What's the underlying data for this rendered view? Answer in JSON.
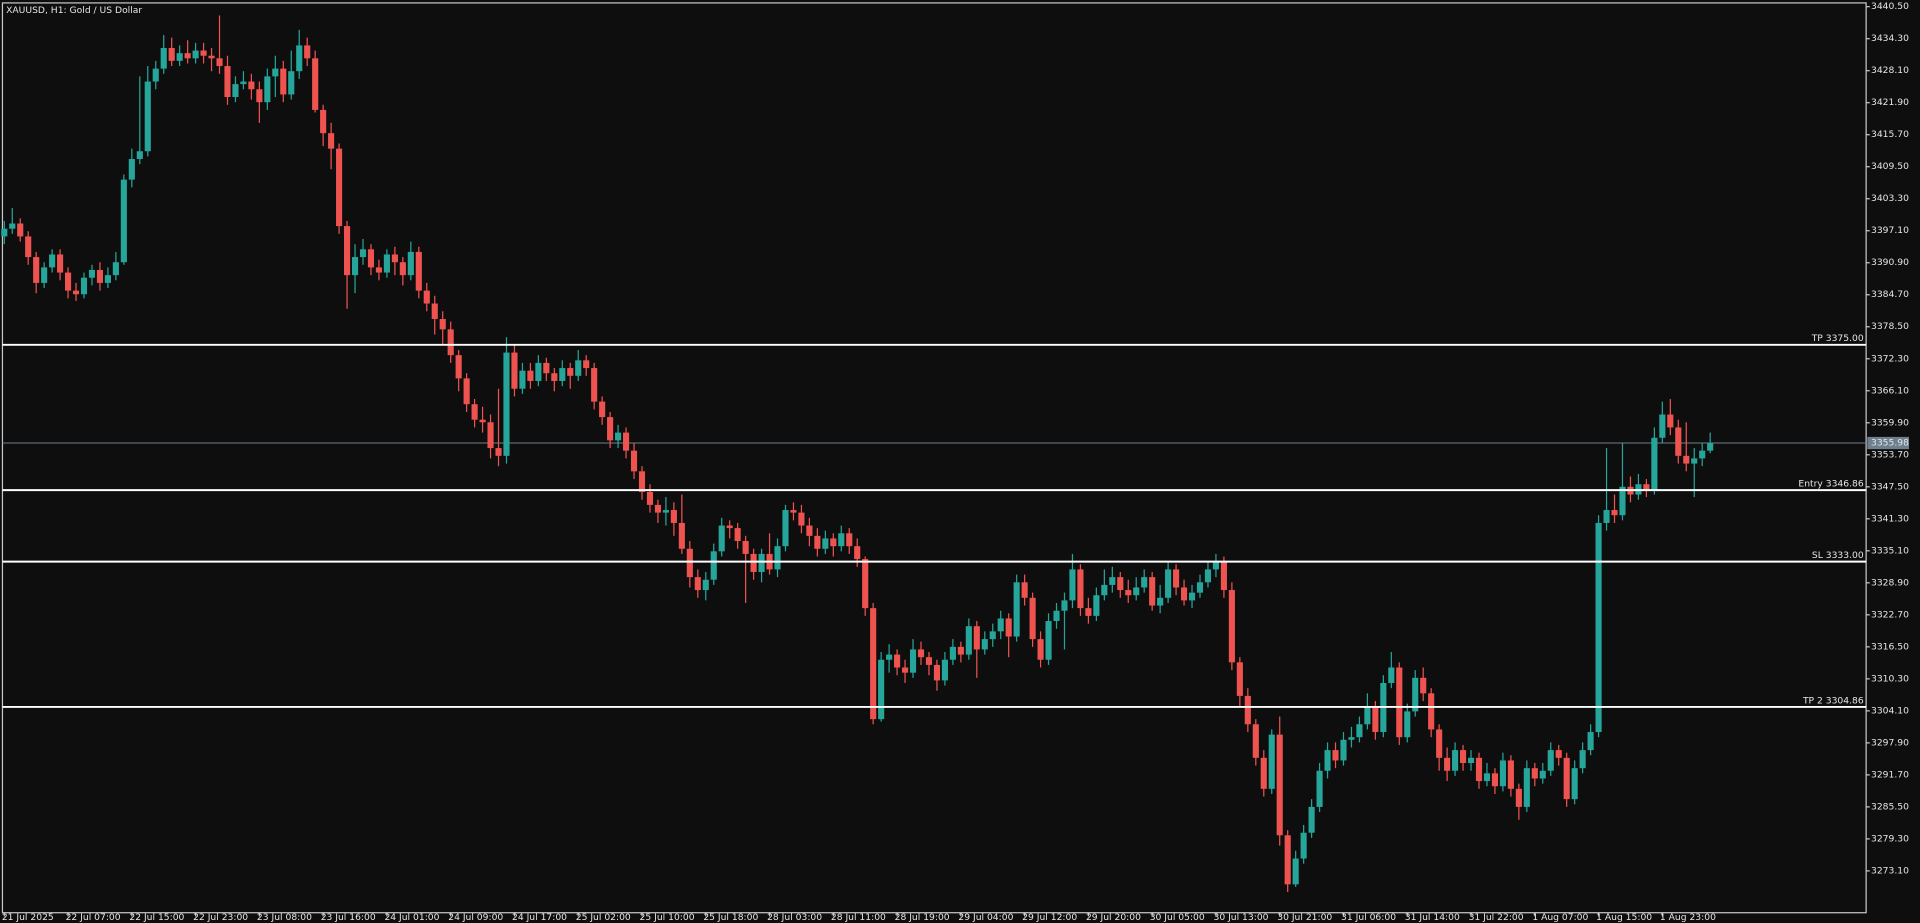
{
  "chart_data": {
    "type": "candlestick",
    "title": "XAUUSD, H1:  Gold / US Dollar",
    "categories": [
      "21 Jul 2025",
      null,
      null,
      null,
      null,
      null,
      null,
      null,
      "22 Jul 07:00",
      null,
      null,
      null,
      null,
      null,
      null,
      null,
      "22 Jul 15:00",
      null,
      null,
      null,
      null,
      null,
      null,
      null,
      "22 Jul 23:00",
      null,
      null,
      null,
      null,
      null,
      null,
      null,
      "23 Jul 08:00",
      null,
      null,
      null,
      null,
      null,
      null,
      null,
      "23 Jul 16:00",
      null,
      null,
      null,
      null,
      null,
      null,
      null,
      "24 Jul 01:00",
      null,
      null,
      null,
      null,
      null,
      null,
      null,
      "24 Jul 09:00",
      null,
      null,
      null,
      null,
      null,
      null,
      null,
      "24 Jul 17:00",
      null,
      null,
      null,
      null,
      null,
      null,
      null,
      "25 Jul 02:00",
      null,
      null,
      null,
      null,
      null,
      null,
      null,
      "25 Jul 10:00",
      null,
      null,
      null,
      null,
      null,
      null,
      null,
      "25 Jul 18:00",
      null,
      null,
      null,
      null,
      null,
      null,
      null,
      "28 Jul 03:00",
      null,
      null,
      null,
      null,
      null,
      null,
      null,
      "28 Jul 11:00",
      null,
      null,
      null,
      null,
      null,
      null,
      null,
      "28 Jul 19:00",
      null,
      null,
      null,
      null,
      null,
      null,
      null,
      "29 Jul 04:00",
      null,
      null,
      null,
      null,
      null,
      null,
      null,
      "29 Jul 12:00",
      null,
      null,
      null,
      null,
      null,
      null,
      null,
      "29 Jul 20:00",
      null,
      null,
      null,
      null,
      null,
      null,
      null,
      "30 Jul 05:00",
      null,
      null,
      null,
      null,
      null,
      null,
      null,
      "30 Jul 13:00",
      null,
      null,
      null,
      null,
      null,
      null,
      null,
      "30 Jul 21:00",
      null,
      null,
      null,
      null,
      null,
      null,
      null,
      "31 Jul 06:00",
      null,
      null,
      null,
      null,
      null,
      null,
      null,
      "31 Jul 14:00",
      null,
      null,
      null,
      null,
      null,
      null,
      null,
      "31 Jul 22:00",
      null,
      null,
      null,
      null,
      null,
      null,
      null,
      "1 Aug 07:00",
      null,
      null,
      null,
      null,
      null,
      null,
      null,
      "1 Aug 15:00",
      null,
      null,
      null,
      null,
      null,
      null,
      null,
      "1 Aug 23:00",
      null,
      null,
      null,
      null,
      null,
      null
    ],
    "open": [
      3396.0,
      3397.5,
      3398.5,
      3396.0,
      3392.0,
      3387.0,
      3390.0,
      3392.5,
      3389.0,
      3385.5,
      3384.8,
      3388.0,
      3389.5,
      3387.0,
      3388.5,
      3391.0,
      3407.0,
      3411.0,
      3412.5,
      3426.0,
      3428.5,
      3432.5,
      3430.0,
      3431.5,
      3430.5,
      3432.0,
      3431.0,
      3430.5,
      3429.0,
      3423.0,
      3425.5,
      3426.0,
      3424.5,
      3422.0,
      3427.0,
      3428.5,
      3423.5,
      3428.0,
      3433.0,
      3430.5,
      3420.5,
      3416.0,
      3413.0,
      3398.0,
      3388.5,
      3392.0,
      3393.5,
      3390.0,
      3389.0,
      3392.5,
      3391.0,
      3388.5,
      3393.0,
      3385.5,
      3383.0,
      3380.0,
      3378.0,
      3373.0,
      3368.5,
      3363.5,
      3360.5,
      3360.0,
      3355.0,
      3353.5,
      3373.5,
      3366.5,
      3370.0,
      3368.0,
      3371.5,
      3369.5,
      3368.0,
      3370.5,
      3369.0,
      3372.0,
      3370.5,
      3364.0,
      3361.0,
      3356.5,
      3358.0,
      3354.5,
      3350.5,
      3346.5,
      3344.0,
      3342.5,
      3343.0,
      3340.5,
      3335.5,
      3330.0,
      3327.5,
      3329.5,
      3335.0,
      3340.0,
      3339.5,
      3337.0,
      3334.5,
      3331.0,
      3334.5,
      3331.5,
      3336.0,
      3343.0,
      3342.5,
      3340.0,
      3338.0,
      3335.5,
      3337.5,
      3336.0,
      3338.5,
      3336.0,
      3333.5,
      3324.0,
      3302.5,
      3314.0,
      3315.0,
      3312.5,
      3311.5,
      3316.0,
      3314.5,
      3313.0,
      3310.0,
      3314.0,
      3316.5,
      3315.0,
      3320.5,
      3316.0,
      3318.0,
      3319.5,
      3322.0,
      3318.5,
      3329.0,
      3326.0,
      3318.0,
      3314.0,
      3321.5,
      3323.5,
      3325.5,
      3331.5,
      3324.0,
      3322.5,
      3326.5,
      3328.5,
      3330.0,
      3327.5,
      3326.5,
      3328.0,
      3330.0,
      3324.5,
      3326.0,
      3331.5,
      3328.0,
      3325.5,
      3327.0,
      3329.0,
      3331.5,
      3333.0,
      3327.5,
      3313.5,
      3307.0,
      3301.5,
      3295.0,
      3289.0,
      3299.5,
      3280.0,
      3270.5,
      3275.5,
      3280.5,
      3285.5,
      3292.5,
      3296.5,
      3294.5,
      3298.5,
      3299.0,
      3301.5,
      3305.0,
      3300.0,
      3309.5,
      3312.5,
      3299.0,
      3304.0,
      3310.5,
      3307.5,
      3300.5,
      3295.0,
      3292.5,
      3296.5,
      3294.0,
      3295.0,
      3290.5,
      3292.0,
      3289.5,
      3294.5,
      3289.0,
      3285.5,
      3293.0,
      3291.0,
      3292.5,
      3296.5,
      3295.0,
      3287.0,
      3293.0,
      3296.5,
      3300.0,
      3340.5,
      3343.0,
      3342.0,
      3347.5,
      3346.0,
      3348.0,
      3347.0,
      3357.0,
      3361.5,
      3359.0,
      3353.5,
      3352.0,
      3353.0,
      3354.5
    ],
    "high": [
      3399.0,
      3401.5,
      3399.5,
      3397.0,
      3393.0,
      3391.0,
      3393.5,
      3393.5,
      3390.0,
      3387.0,
      3389.0,
      3390.5,
      3391.0,
      3390.0,
      3393.0,
      3408.0,
      3413.0,
      3427.0,
      3429.0,
      3430.0,
      3435.0,
      3434.5,
      3433.0,
      3434.0,
      3433.5,
      3433.5,
      3432.5,
      3438.8,
      3431.0,
      3427.0,
      3428.0,
      3427.5,
      3426.0,
      3428.5,
      3431.0,
      3430.0,
      3432.0,
      3436.0,
      3434.5,
      3432.0,
      3421.5,
      3418.0,
      3414.0,
      3399.0,
      3394.5,
      3395.5,
      3394.5,
      3391.5,
      3393.5,
      3394.0,
      3392.0,
      3395.0,
      3394.0,
      3387.0,
      3384.5,
      3381.5,
      3379.5,
      3374.0,
      3369.5,
      3364.5,
      3363.0,
      3361.5,
      3366.5,
      3376.5,
      3375.0,
      3371.5,
      3371.5,
      3373.0,
      3372.5,
      3370.5,
      3372.0,
      3371.5,
      3374.0,
      3373.0,
      3371.5,
      3365.0,
      3362.0,
      3359.5,
      3359.0,
      3356.0,
      3351.5,
      3348.0,
      3345.0,
      3345.5,
      3344.5,
      3346.0,
      3337.0,
      3331.5,
      3331.0,
      3336.5,
      3341.5,
      3341.0,
      3340.5,
      3338.0,
      3335.5,
      3335.5,
      3338.5,
      3337.5,
      3344.0,
      3344.5,
      3344.0,
      3341.5,
      3339.5,
      3339.0,
      3338.5,
      3340.0,
      3339.5,
      3337.5,
      3334.0,
      3325.0,
      3315.5,
      3317.0,
      3316.0,
      3314.0,
      3318.0,
      3317.5,
      3315.5,
      3314.0,
      3315.5,
      3318.0,
      3317.5,
      3322.0,
      3321.5,
      3319.5,
      3321.0,
      3323.5,
      3323.0,
      3330.5,
      3330.5,
      3327.0,
      3319.5,
      3323.0,
      3325.0,
      3327.0,
      3334.5,
      3332.5,
      3326.0,
      3328.0,
      3331.5,
      3332.0,
      3331.0,
      3329.5,
      3330.0,
      3331.5,
      3331.0,
      3328.5,
      3333.0,
      3332.5,
      3329.5,
      3328.5,
      3330.5,
      3333.0,
      3334.5,
      3334.0,
      3329.0,
      3314.5,
      3308.5,
      3302.5,
      3296.5,
      3300.5,
      3303.0,
      3281.0,
      3277.0,
      3282.0,
      3287.0,
      3294.0,
      3298.0,
      3298.0,
      3300.0,
      3301.0,
      3303.0,
      3307.5,
      3306.0,
      3311.0,
      3315.5,
      3313.5,
      3305.5,
      3312.0,
      3312.5,
      3308.5,
      3301.5,
      3297.0,
      3298.0,
      3297.5,
      3296.5,
      3296.0,
      3294.0,
      3293.0,
      3296.0,
      3295.5,
      3290.0,
      3294.5,
      3294.0,
      3294.0,
      3298.0,
      3297.5,
      3296.0,
      3294.5,
      3298.0,
      3301.5,
      3342.0,
      3355.0,
      3346.0,
      3356.0,
      3349.5,
      3350.0,
      3349.0,
      3359.0,
      3364.0,
      3364.5,
      3360.5,
      3360.0,
      3355.0,
      3356.0,
      3358.0
    ],
    "low": [
      3394.5,
      3396.5,
      3395.0,
      3390.5,
      3385.0,
      3386.0,
      3389.0,
      3387.5,
      3384.0,
      3383.5,
      3384.0,
      3386.5,
      3385.5,
      3386.0,
      3387.5,
      3390.5,
      3405.5,
      3410.0,
      3411.5,
      3424.5,
      3427.5,
      3429.0,
      3429.0,
      3429.5,
      3429.5,
      3429.5,
      3428.0,
      3427.5,
      3421.5,
      3422.0,
      3424.5,
      3422.5,
      3418.0,
      3420.5,
      3423.0,
      3422.0,
      3422.5,
      3426.5,
      3429.0,
      3420.0,
      3413.5,
      3409.0,
      3396.5,
      3382.0,
      3385.0,
      3390.5,
      3388.5,
      3387.5,
      3388.0,
      3388.5,
      3386.5,
      3387.5,
      3384.0,
      3381.5,
      3377.0,
      3375.0,
      3371.5,
      3366.0,
      3362.0,
      3359.0,
      3358.0,
      3353.0,
      3351.5,
      3352.0,
      3365.0,
      3365.5,
      3366.5,
      3367.0,
      3368.0,
      3366.0,
      3367.0,
      3366.5,
      3368.0,
      3369.0,
      3362.5,
      3359.5,
      3355.0,
      3355.0,
      3353.0,
      3349.0,
      3345.0,
      3342.5,
      3340.5,
      3340.0,
      3338.0,
      3334.5,
      3328.0,
      3326.0,
      3325.5,
      3328.5,
      3334.0,
      3337.5,
      3335.5,
      3325.0,
      3329.5,
      3329.0,
      3330.5,
      3330.0,
      3335.0,
      3341.0,
      3338.5,
      3336.0,
      3334.0,
      3334.5,
      3334.0,
      3335.0,
      3334.5,
      3332.0,
      3322.5,
      3301.5,
      3302.0,
      3311.5,
      3311.0,
      3309.5,
      3310.5,
      3313.0,
      3311.0,
      3308.0,
      3309.0,
      3313.0,
      3313.5,
      3314.0,
      3310.5,
      3315.0,
      3316.5,
      3318.0,
      3314.5,
      3317.5,
      3324.5,
      3316.5,
      3312.5,
      3313.0,
      3320.0,
      3316.0,
      3324.0,
      3322.5,
      3321.0,
      3321.5,
      3325.5,
      3327.0,
      3326.0,
      3325.0,
      3325.5,
      3327.0,
      3323.5,
      3323.0,
      3325.0,
      3326.5,
      3324.5,
      3324.0,
      3326.0,
      3328.0,
      3330.0,
      3326.0,
      3312.0,
      3305.0,
      3300.0,
      3293.5,
      3287.5,
      3288.0,
      3278.0,
      3269.0,
      3270.0,
      3274.5,
      3279.5,
      3284.5,
      3291.0,
      3293.0,
      3293.5,
      3297.0,
      3298.0,
      3300.5,
      3298.5,
      3299.0,
      3308.5,
      3297.5,
      3298.0,
      3303.0,
      3306.0,
      3299.0,
      3292.5,
      3290.5,
      3291.5,
      3292.5,
      3292.5,
      3289.0,
      3289.5,
      3288.0,
      3288.5,
      3287.5,
      3283.0,
      3284.5,
      3289.5,
      3290.0,
      3291.5,
      3293.5,
      3285.5,
      3286.0,
      3292.0,
      3295.5,
      3299.0,
      3339.0,
      3340.5,
      3341.0,
      3344.5,
      3345.0,
      3345.5,
      3346.0,
      3356.0,
      3357.5,
      3352.0,
      3350.5,
      3345.5,
      3351.5,
      3354.0
    ],
    "close": [
      3397.5,
      3398.5,
      3396.0,
      3392.0,
      3387.0,
      3390.0,
      3392.5,
      3389.0,
      3385.5,
      3384.8,
      3388.0,
      3389.5,
      3387.0,
      3388.5,
      3391.0,
      3407.0,
      3411.0,
      3412.5,
      3426.0,
      3428.5,
      3432.5,
      3430.0,
      3431.5,
      3430.5,
      3432.0,
      3431.0,
      3430.5,
      3429.0,
      3423.0,
      3425.5,
      3426.0,
      3424.5,
      3422.0,
      3427.0,
      3428.5,
      3423.5,
      3428.0,
      3433.0,
      3430.5,
      3420.5,
      3416.0,
      3413.0,
      3398.0,
      3388.5,
      3392.0,
      3393.5,
      3390.0,
      3389.0,
      3392.5,
      3391.0,
      3388.5,
      3393.0,
      3385.5,
      3383.0,
      3380.0,
      3378.0,
      3373.0,
      3368.5,
      3363.5,
      3360.5,
      3360.0,
      3355.0,
      3353.5,
      3373.5,
      3366.5,
      3370.0,
      3368.0,
      3371.5,
      3369.5,
      3368.0,
      3370.5,
      3369.0,
      3372.0,
      3370.5,
      3364.0,
      3361.0,
      3356.5,
      3358.0,
      3354.5,
      3350.5,
      3346.5,
      3344.0,
      3342.5,
      3343.0,
      3340.5,
      3335.5,
      3330.0,
      3327.5,
      3329.5,
      3335.0,
      3340.0,
      3339.5,
      3337.0,
      3334.5,
      3331.0,
      3334.5,
      3331.5,
      3336.0,
      3343.0,
      3342.5,
      3340.0,
      3338.0,
      3335.5,
      3337.5,
      3336.0,
      3338.5,
      3336.0,
      3333.5,
      3324.0,
      3302.5,
      3314.0,
      3315.0,
      3312.5,
      3311.5,
      3316.0,
      3314.5,
      3313.0,
      3310.0,
      3314.0,
      3316.5,
      3315.0,
      3320.5,
      3316.0,
      3318.0,
      3319.5,
      3322.0,
      3318.5,
      3329.0,
      3326.0,
      3318.0,
      3314.0,
      3321.5,
      3323.5,
      3325.5,
      3331.5,
      3324.0,
      3322.5,
      3326.5,
      3328.5,
      3330.0,
      3327.5,
      3326.5,
      3328.0,
      3330.0,
      3324.5,
      3326.0,
      3331.5,
      3328.0,
      3325.5,
      3327.0,
      3329.0,
      3331.5,
      3333.0,
      3327.5,
      3313.5,
      3307.0,
      3301.5,
      3295.0,
      3289.0,
      3299.5,
      3280.0,
      3270.5,
      3275.5,
      3280.5,
      3285.5,
      3292.5,
      3296.5,
      3294.5,
      3298.5,
      3299.0,
      3301.5,
      3305.0,
      3300.0,
      3309.5,
      3312.5,
      3299.0,
      3304.0,
      3310.5,
      3307.5,
      3300.5,
      3295.0,
      3292.5,
      3296.5,
      3294.0,
      3295.0,
      3290.5,
      3292.0,
      3289.5,
      3294.5,
      3289.0,
      3285.5,
      3293.0,
      3291.0,
      3292.5,
      3296.5,
      3295.0,
      3287.0,
      3293.0,
      3296.5,
      3300.0,
      3340.5,
      3343.0,
      3342.0,
      3347.5,
      3346.0,
      3348.0,
      3347.0,
      3357.0,
      3361.5,
      3359.0,
      3353.5,
      3352.0,
      3353.0,
      3354.5,
      3355.98
    ],
    "up_color": "#26a69a",
    "down_color": "#ef5350",
    "ylim": [
      3265.0,
      3441.7
    ],
    "yticks": [
      {
        "value": 3440.5,
        "label": "3440.50"
      },
      {
        "value": 3434.3,
        "label": "3434.30"
      },
      {
        "value": 3428.1,
        "label": "3428.10"
      },
      {
        "value": 3421.9,
        "label": "3421.90"
      },
      {
        "value": 3415.7,
        "label": "3415.70"
      },
      {
        "value": 3409.5,
        "label": "3409.50"
      },
      {
        "value": 3403.3,
        "label": "3403.30"
      },
      {
        "value": 3397.1,
        "label": "3397.10"
      },
      {
        "value": 3390.9,
        "label": "3390.90"
      },
      {
        "value": 3384.7,
        "label": "3384.70"
      },
      {
        "value": 3378.5,
        "label": "3378.50"
      },
      {
        "value": 3372.3,
        "label": "3372.30"
      },
      {
        "value": 3366.1,
        "label": "3366.10"
      },
      {
        "value": 3359.9,
        "label": "3359.90"
      },
      {
        "value": 3353.7,
        "label": "3353.70"
      },
      {
        "value": 3347.5,
        "label": "3347.50"
      },
      {
        "value": 3341.3,
        "label": "3341.30"
      },
      {
        "value": 3335.1,
        "label": "3335.10"
      },
      {
        "value": 3328.9,
        "label": "3328.90"
      },
      {
        "value": 3322.7,
        "label": "3322.70"
      },
      {
        "value": 3316.5,
        "label": "3316.50"
      },
      {
        "value": 3310.3,
        "label": "3310.30"
      },
      {
        "value": 3304.1,
        "label": "3304.10"
      },
      {
        "value": 3297.9,
        "label": "3297.90"
      },
      {
        "value": 3291.7,
        "label": "3291.70"
      },
      {
        "value": 3285.5,
        "label": "3285.50"
      },
      {
        "value": 3279.3,
        "label": "3279.30"
      },
      {
        "value": 3273.1,
        "label": "3273.10"
      }
    ],
    "levels": [
      {
        "value": 3375.0,
        "label": "TP 3375.00"
      },
      {
        "value": 3346.86,
        "label": "Entry 3346.86"
      },
      {
        "value": 3333.0,
        "label": "SL 3333.00"
      },
      {
        "value": 3304.86,
        "label": "TP 2 3304.86"
      }
    ],
    "bid": 3355.98
  }
}
